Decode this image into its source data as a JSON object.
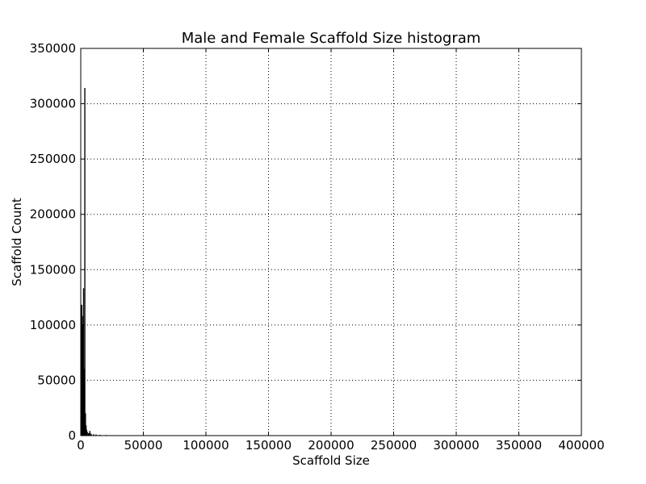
{
  "chart_data": {
    "type": "bar",
    "title": "Male and Female Scaffold Size histogram",
    "xlabel": "Scaffold Size",
    "ylabel": "Scaffold Count",
    "xlim": [
      0,
      400000
    ],
    "ylim": [
      0,
      350000
    ],
    "xticks": [
      0,
      50000,
      100000,
      150000,
      200000,
      250000,
      300000,
      350000,
      400000
    ],
    "yticks": [
      0,
      50000,
      100000,
      150000,
      200000,
      250000,
      300000,
      350000
    ],
    "xtick_labels": [
      "0",
      "50000",
      "100000",
      "150000",
      "200000",
      "250000",
      "300000",
      "350000",
      "400000"
    ],
    "ytick_labels": [
      "0",
      "50000",
      "100000",
      "150000",
      "200000",
      "250000",
      "300000",
      "350000"
    ],
    "grid": true,
    "bin_width": 500,
    "bins": [
      {
        "x": 0,
        "count": 95000
      },
      {
        "x": 500,
        "count": 118000
      },
      {
        "x": 1000,
        "count": 108000
      },
      {
        "x": 1500,
        "count": 100000
      },
      {
        "x": 2000,
        "count": 133000
      },
      {
        "x": 2500,
        "count": 60000
      },
      {
        "x": 3000,
        "count": 314000
      },
      {
        "x": 3500,
        "count": 20000
      },
      {
        "x": 4000,
        "count": 9000
      },
      {
        "x": 4500,
        "count": 5000
      },
      {
        "x": 5000,
        "count": 3000
      },
      {
        "x": 6000,
        "count": 2000
      },
      {
        "x": 7000,
        "count": 4000
      },
      {
        "x": 8000,
        "count": 1500
      },
      {
        "x": 10000,
        "count": 1000
      },
      {
        "x": 12000,
        "count": 800
      },
      {
        "x": 15000,
        "count": 500
      },
      {
        "x": 20000,
        "count": 300
      },
      {
        "x": 30000,
        "count": 200
      },
      {
        "x": 50000,
        "count": 100
      },
      {
        "x": 80000,
        "count": 80
      },
      {
        "x": 120000,
        "count": 60
      },
      {
        "x": 160000,
        "count": 50
      },
      {
        "x": 200000,
        "count": 40
      },
      {
        "x": 250000,
        "count": 30
      },
      {
        "x": 300000,
        "count": 20
      },
      {
        "x": 350000,
        "count": 20
      },
      {
        "x": 380000,
        "count": 10
      }
    ],
    "colors": {
      "bar": "#000000",
      "grid": "#000000",
      "axis": "#000000"
    }
  }
}
